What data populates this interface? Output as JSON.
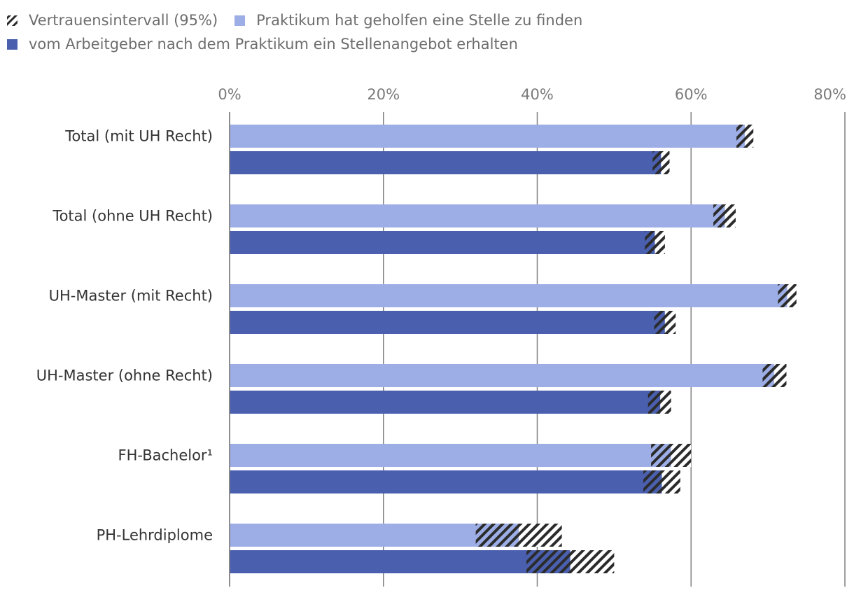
{
  "legend": {
    "ci": "Vertrauensintervall (95%)",
    "light": "Praktikum hat geholfen eine Stelle zu finden",
    "dark": "vom Arbeitgeber nach dem Praktikum ein Stellenangebot erhalten"
  },
  "colors": {
    "light": "#9daee6",
    "dark": "#4a60af",
    "hatch": "#2b2b2b",
    "grid": "#7f7f7f"
  },
  "chart_data": {
    "type": "bar",
    "orientation": "horizontal",
    "xlim": [
      0,
      80
    ],
    "ticks": [
      0,
      20,
      40,
      60,
      80
    ],
    "tick_labels": [
      "0%",
      "20%",
      "40%",
      "60%",
      "80%"
    ],
    "legend_position": "top-left",
    "categories": [
      "Total (mit UH Recht)",
      "Total (ohne UH Recht)",
      "UH-Master (mit Recht)",
      "UH-Master (ohne Recht)",
      "FH-Bachelor¹",
      "PH-Lehrdiplome"
    ],
    "series": [
      {
        "name": "Praktikum hat geholfen eine Stelle zu finden",
        "color": "#9daee6",
        "values": [
          67.0,
          64.4,
          72.5,
          70.8,
          57.4,
          37.6
        ],
        "ci": [
          [
            65.9,
            68.1
          ],
          [
            62.9,
            65.8
          ],
          [
            71.3,
            73.7
          ],
          [
            69.3,
            72.4
          ],
          [
            54.8,
            60.0
          ],
          [
            32.0,
            43.2
          ]
        ]
      },
      {
        "name": "vom Arbeitgeber nach dem Praktikum ein Stellenangebot erhalten",
        "color": "#4a60af",
        "values": [
          56.1,
          55.3,
          56.6,
          56.0,
          56.2,
          44.3
        ],
        "ci": [
          [
            55.0,
            57.2
          ],
          [
            54.0,
            56.6
          ],
          [
            55.2,
            58.0
          ],
          [
            54.4,
            57.4
          ],
          [
            53.8,
            58.6
          ],
          [
            38.6,
            50.0
          ]
        ]
      }
    ]
  }
}
